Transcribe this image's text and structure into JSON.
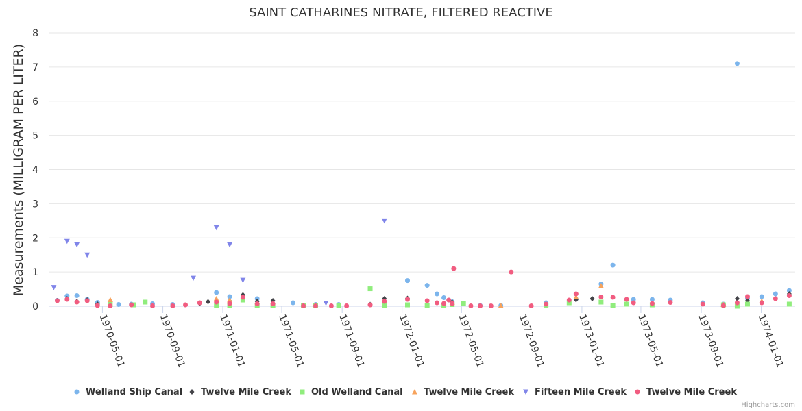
{
  "chart_data": {
    "type": "scatter",
    "title": "SAINT CATHARINES NITRATE, FILTERED REACTIVE",
    "ylabel": "Measurements (MILLIGRAM PER LITER)",
    "ylim": [
      0,
      8
    ],
    "yticks": [
      "0",
      "1",
      "2",
      "3",
      "4",
      "5",
      "6",
      "7",
      "8"
    ],
    "xlim": [
      "1970-01-13",
      "1974-03-11"
    ],
    "xticks": [
      "1970-05-01",
      "1970-09-01",
      "1971-01-01",
      "1971-05-01",
      "1971-09-01",
      "1972-01-01",
      "1972-05-01",
      "1972-09-01",
      "1973-01-01",
      "1973-05-01",
      "1973-09-01",
      "1974-01-01"
    ],
    "grid": true,
    "legend_position": "bottom",
    "credits": "Highcharts.com",
    "series": [
      {
        "name": "Welland Ship Canal",
        "color": "#7cb5ec",
        "marker": "circle",
        "points": [
          [
            "1970-01-29",
            0.17
          ],
          [
            "1970-02-18",
            0.3
          ],
          [
            "1970-03-10",
            0.31
          ],
          [
            "1970-03-31",
            0.2
          ],
          [
            "1970-04-21",
            0.11
          ],
          [
            "1970-06-03",
            0.05
          ],
          [
            "1970-06-29",
            0.06
          ],
          [
            "1970-08-11",
            0.07
          ],
          [
            "1970-09-21",
            0.05
          ],
          [
            "1970-12-19",
            0.4
          ],
          [
            "1971-01-15",
            0.28
          ],
          [
            "1971-03-12",
            0.22
          ],
          [
            "1971-05-24",
            0.1
          ],
          [
            "1971-07-09",
            0.05
          ],
          [
            "1971-08-25",
            0.05
          ],
          [
            "1972-01-12",
            0.75
          ],
          [
            "1972-02-21",
            0.61
          ],
          [
            "1972-03-12",
            0.36
          ],
          [
            "1972-03-26",
            0.25
          ],
          [
            "1972-04-05",
            0.18
          ],
          [
            "1972-04-12",
            0.13
          ],
          [
            "1972-06-08",
            0.02
          ],
          [
            "1972-07-20",
            0.02
          ],
          [
            "1972-10-20",
            0.1
          ],
          [
            "1972-12-20",
            0.21
          ],
          [
            "1973-02-09",
            0.65
          ],
          [
            "1973-03-05",
            1.2
          ],
          [
            "1973-04-16",
            0.2
          ],
          [
            "1973-05-24",
            0.2
          ],
          [
            "1973-06-30",
            0.18
          ],
          [
            "1973-09-04",
            0.1
          ],
          [
            "1973-10-16",
            0.06
          ],
          [
            "1973-11-13",
            7.1
          ],
          [
            "1973-12-04",
            0.23
          ],
          [
            "1974-01-02",
            0.28
          ],
          [
            "1974-01-30",
            0.36
          ],
          [
            "1974-02-27",
            0.46
          ]
        ]
      },
      {
        "name": "Twelve Mile Creek",
        "color": "#434348",
        "marker": "diamond",
        "points": [
          [
            "1970-01-29",
            0.16
          ],
          [
            "1970-02-18",
            0.22
          ],
          [
            "1970-03-10",
            0.14
          ],
          [
            "1970-03-31",
            0.18
          ],
          [
            "1970-04-21",
            0.06
          ],
          [
            "1970-11-15",
            0.08
          ],
          [
            "1970-12-02",
            0.13
          ],
          [
            "1971-01-15",
            0.15
          ],
          [
            "1971-02-11",
            0.33
          ],
          [
            "1971-03-12",
            0.14
          ],
          [
            "1971-04-13",
            0.16
          ],
          [
            "1971-10-28",
            0.05
          ],
          [
            "1971-11-26",
            0.22
          ],
          [
            "1972-01-12",
            0.23
          ],
          [
            "1972-04-12",
            0.12
          ],
          [
            "1972-12-20",
            0.19
          ],
          [
            "1973-01-22",
            0.22
          ],
          [
            "1973-11-13",
            0.22
          ],
          [
            "1973-12-04",
            0.16
          ],
          [
            "1974-02-27",
            0.36
          ]
        ]
      },
      {
        "name": "Old Welland Canal",
        "color": "#90ed7d",
        "marker": "square",
        "points": [
          [
            "1970-05-17",
            0.05
          ],
          [
            "1970-07-03",
            0.04
          ],
          [
            "1970-07-27",
            0.12
          ],
          [
            "1970-12-19",
            0.02
          ],
          [
            "1971-01-15",
            0.01
          ],
          [
            "1971-02-11",
            0.18
          ],
          [
            "1971-03-12",
            0.02
          ],
          [
            "1971-04-13",
            0.02
          ],
          [
            "1971-06-14",
            0.02
          ],
          [
            "1971-07-09",
            0.01
          ],
          [
            "1971-08-25",
            0.02
          ],
          [
            "1971-10-28",
            0.51
          ],
          [
            "1971-11-26",
            0.02
          ],
          [
            "1972-01-12",
            0.04
          ],
          [
            "1972-02-21",
            0.02
          ],
          [
            "1972-03-26",
            0.02
          ],
          [
            "1972-04-12",
            0.05
          ],
          [
            "1972-05-05",
            0.08
          ],
          [
            "1972-10-20",
            0.03
          ],
          [
            "1972-12-06",
            0.1
          ],
          [
            "1973-02-09",
            0.12
          ],
          [
            "1973-03-05",
            0.01
          ],
          [
            "1973-04-02",
            0.06
          ],
          [
            "1973-05-24",
            0.04
          ],
          [
            "1973-10-16",
            0.04
          ],
          [
            "1973-11-13",
            0.0
          ],
          [
            "1973-12-04",
            0.06
          ],
          [
            "1974-02-27",
            0.06
          ]
        ]
      },
      {
        "name": "Twelve Mile Creek",
        "color": "#f7a35c",
        "marker": "triangle",
        "points": [
          [
            "1970-05-17",
            0.19
          ],
          [
            "1970-12-19",
            0.22
          ],
          [
            "1971-01-15",
            0.18
          ],
          [
            "1972-04-12",
            0.11
          ],
          [
            "1972-07-20",
            0.02
          ],
          [
            "1972-12-20",
            0.27
          ],
          [
            "1973-02-09",
            0.6
          ],
          [
            "1973-10-16",
            0.05
          ],
          [
            "1974-01-02",
            0.15
          ]
        ]
      },
      {
        "name": "Fifteen Mile Creek",
        "color": "#8085e9",
        "marker": "triangle-down",
        "points": [
          [
            "1970-01-22",
            0.55
          ],
          [
            "1970-02-18",
            1.9
          ],
          [
            "1970-03-10",
            1.8
          ],
          [
            "1970-03-31",
            1.5
          ],
          [
            "1970-11-02",
            0.82
          ],
          [
            "1970-12-19",
            2.3
          ],
          [
            "1971-01-15",
            1.8
          ],
          [
            "1971-02-11",
            0.76
          ],
          [
            "1971-07-30",
            0.09
          ],
          [
            "1971-11-26",
            2.5
          ]
        ]
      },
      {
        "name": "Twelve Mile Creek",
        "color": "#f15c80",
        "marker": "circle",
        "points": [
          [
            "1970-01-29",
            0.16
          ],
          [
            "1970-02-18",
            0.2
          ],
          [
            "1970-03-10",
            0.12
          ],
          [
            "1970-03-31",
            0.16
          ],
          [
            "1970-04-21",
            0.02
          ],
          [
            "1970-05-17",
            0.01
          ],
          [
            "1970-06-29",
            0.04
          ],
          [
            "1970-08-11",
            0.01
          ],
          [
            "1970-09-21",
            0.01
          ],
          [
            "1970-10-17",
            0.04
          ],
          [
            "1970-11-15",
            0.1
          ],
          [
            "1970-12-19",
            0.12
          ],
          [
            "1971-01-15",
            0.08
          ],
          [
            "1971-02-11",
            0.26
          ],
          [
            "1971-03-12",
            0.07
          ],
          [
            "1971-04-13",
            0.07
          ],
          [
            "1971-06-14",
            0.01
          ],
          [
            "1971-07-09",
            0.01
          ],
          [
            "1971-08-10",
            0.01
          ],
          [
            "1971-09-10",
            0.01
          ],
          [
            "1971-10-28",
            0.04
          ],
          [
            "1971-11-26",
            0.14
          ],
          [
            "1972-01-12",
            0.2
          ],
          [
            "1972-02-21",
            0.16
          ],
          [
            "1972-03-12",
            0.1
          ],
          [
            "1972-03-26",
            0.08
          ],
          [
            "1972-04-05",
            0.18
          ],
          [
            "1972-04-12",
            0.08
          ],
          [
            "1972-04-15",
            1.1
          ],
          [
            "1972-05-20",
            0.01
          ],
          [
            "1972-06-08",
            0.01
          ],
          [
            "1972-06-30",
            0.01
          ],
          [
            "1972-08-10",
            1.0
          ],
          [
            "1972-09-20",
            0.01
          ],
          [
            "1972-10-20",
            0.06
          ],
          [
            "1972-12-06",
            0.18
          ],
          [
            "1972-12-20",
            0.36
          ],
          [
            "1973-02-09",
            0.27
          ],
          [
            "1973-03-05",
            0.26
          ],
          [
            "1973-04-02",
            0.2
          ],
          [
            "1973-04-16",
            0.1
          ],
          [
            "1973-05-24",
            0.08
          ],
          [
            "1973-06-30",
            0.11
          ],
          [
            "1973-09-04",
            0.06
          ],
          [
            "1973-10-16",
            0.02
          ],
          [
            "1973-11-13",
            0.1
          ],
          [
            "1973-12-04",
            0.28
          ],
          [
            "1974-01-02",
            0.1
          ],
          [
            "1974-01-30",
            0.22
          ],
          [
            "1974-02-27",
            0.31
          ]
        ]
      }
    ]
  }
}
